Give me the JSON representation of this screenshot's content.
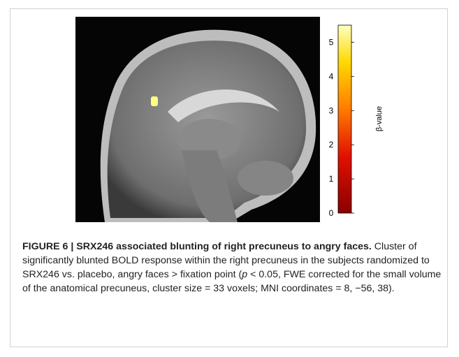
{
  "figure": {
    "colorbar": {
      "label": "β-value",
      "range": [
        0,
        5.5
      ],
      "ticks": [
        0,
        1,
        2,
        3,
        4,
        5
      ]
    },
    "caption": {
      "title": "FIGURE 6 | SRX246 associated blunting of right precuneus to angry faces.",
      "text_before": " Cluster of significantly blunted BOLD response within the right precuneus in the subjects randomized to SRX246 vs. placebo, angry faces > fixation point (",
      "italic": "p",
      "text_after": " < 0.05, FWE corrected for the small volume of the anatomical precuneus, cluster size = 33 voxels; MNI coordinates = 8, −56, 38)."
    }
  }
}
